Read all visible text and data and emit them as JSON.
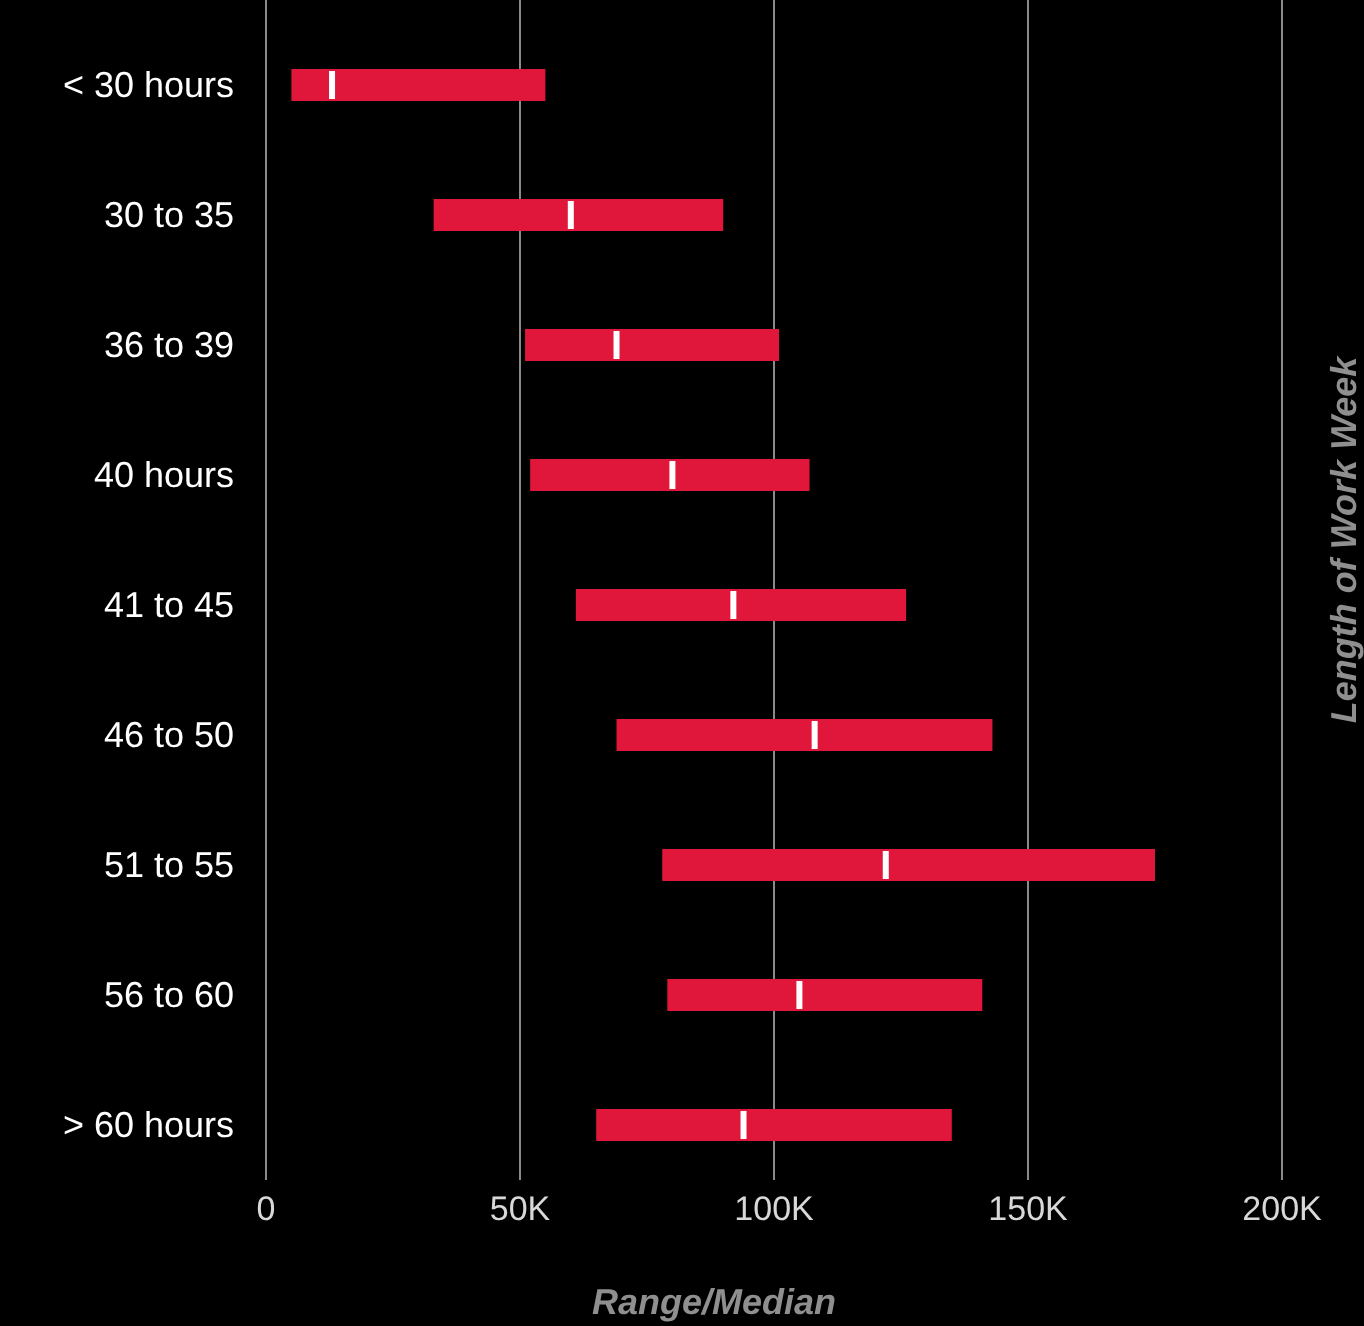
{
  "chart_data": {
    "type": "box",
    "orientation": "horizontal",
    "xlabel": "Range/Median",
    "ylabel": "Length of Work Week",
    "categories": [
      "< 30 hours",
      "30 to 35",
      "36 to 39",
      "40 hours",
      "41 to 45",
      "46 to 50",
      "51 to 55",
      "56 to 60",
      "> 60 hours"
    ],
    "series": [
      {
        "color": "#e0163a",
        "boxes": [
          {
            "low": 5000,
            "q1": 5000,
            "median": 13000,
            "q3": 55000,
            "high": 55000
          },
          {
            "low": 33000,
            "q1": 33000,
            "median": 60000,
            "q3": 90000,
            "high": 90000
          },
          {
            "low": 51000,
            "q1": 51000,
            "median": 69000,
            "q3": 101000,
            "high": 101000
          },
          {
            "low": 52000,
            "q1": 52000,
            "median": 80000,
            "q3": 107000,
            "high": 107000
          },
          {
            "low": 61000,
            "q1": 61000,
            "median": 92000,
            "q3": 126000,
            "high": 126000
          },
          {
            "low": 69000,
            "q1": 69000,
            "median": 108000,
            "q3": 143000,
            "high": 143000
          },
          {
            "low": 78000,
            "q1": 78000,
            "median": 122000,
            "q3": 175000,
            "high": 175000
          },
          {
            "low": 79000,
            "q1": 79000,
            "median": 105000,
            "q3": 141000,
            "high": 141000
          },
          {
            "low": 65000,
            "q1": 65000,
            "median": 94000,
            "q3": 135000,
            "high": 135000
          }
        ]
      }
    ],
    "xlim": [
      0,
      200000
    ],
    "xticks": [
      0,
      {
        "value": 50000,
        "label": "50K"
      },
      {
        "value": 100000,
        "label": "100K"
      },
      {
        "value": 150000,
        "label": "150K"
      },
      {
        "value": 200000,
        "label": "200K"
      }
    ],
    "grid": "x"
  }
}
